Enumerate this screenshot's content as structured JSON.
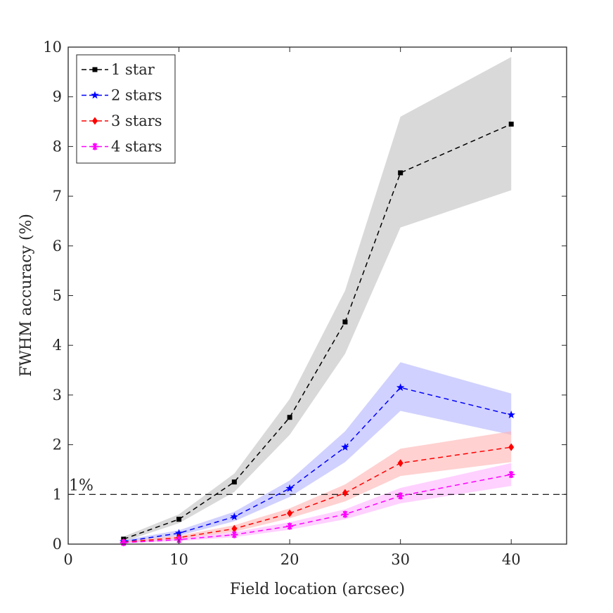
{
  "chart_data": {
    "type": "line",
    "title": "",
    "xlabel": "Field location (arcsec)",
    "ylabel": "FWHM accuracy (%)",
    "xlim": [
      0,
      45
    ],
    "ylim": [
      0,
      10
    ],
    "xticks": [
      0,
      10,
      20,
      30,
      40
    ],
    "yticks": [
      0,
      1,
      2,
      3,
      4,
      5,
      6,
      7,
      8,
      9,
      10
    ],
    "grid": false,
    "legend_position": "top-left",
    "x": [
      5,
      10,
      15,
      20,
      25,
      30,
      40
    ],
    "series": [
      {
        "name": "1 star",
        "color": "#000000",
        "band_color": "#bfbfbf",
        "marker": "square",
        "line_style": "dashed",
        "values": [
          0.1,
          0.5,
          1.25,
          2.55,
          4.47,
          7.47,
          8.45
        ],
        "lower": [
          0.05,
          0.42,
          1.05,
          2.2,
          3.83,
          6.37,
          7.12
        ],
        "upper": [
          0.15,
          0.6,
          1.42,
          2.92,
          5.1,
          8.6,
          9.8
        ]
      },
      {
        "name": "2 stars",
        "color": "#0000ff",
        "band_color": "#b3b3ff",
        "marker": "star",
        "line_style": "dashed",
        "values": [
          0.05,
          0.22,
          0.55,
          1.12,
          1.95,
          3.15,
          2.6
        ],
        "lower": [
          0.03,
          0.17,
          0.46,
          0.95,
          1.65,
          2.68,
          2.2
        ],
        "upper": [
          0.08,
          0.28,
          0.65,
          1.28,
          2.27,
          3.66,
          3.03
        ]
      },
      {
        "name": "3 stars",
        "color": "#ff0000",
        "band_color": "#ffb3b3",
        "marker": "diamond",
        "line_style": "dashed",
        "values": [
          0.04,
          0.13,
          0.31,
          0.62,
          1.03,
          1.63,
          1.95
        ],
        "lower": [
          0.02,
          0.09,
          0.25,
          0.52,
          0.86,
          1.37,
          1.65
        ],
        "upper": [
          0.06,
          0.17,
          0.38,
          0.72,
          1.2,
          1.92,
          2.27
        ]
      },
      {
        "name": "4 stars",
        "color": "#ff00ff",
        "band_color": "#ffb3ff",
        "marker": "asterisk",
        "line_style": "dashed",
        "values": [
          0.03,
          0.09,
          0.19,
          0.36,
          0.6,
          0.97,
          1.4
        ],
        "lower": [
          0.02,
          0.06,
          0.14,
          0.29,
          0.5,
          0.82,
          1.17
        ],
        "upper": [
          0.05,
          0.12,
          0.24,
          0.44,
          0.7,
          1.13,
          1.63
        ]
      }
    ],
    "reference_line": {
      "y": 1,
      "label": "1%",
      "color": "#000000",
      "line_style": "dashed"
    }
  }
}
